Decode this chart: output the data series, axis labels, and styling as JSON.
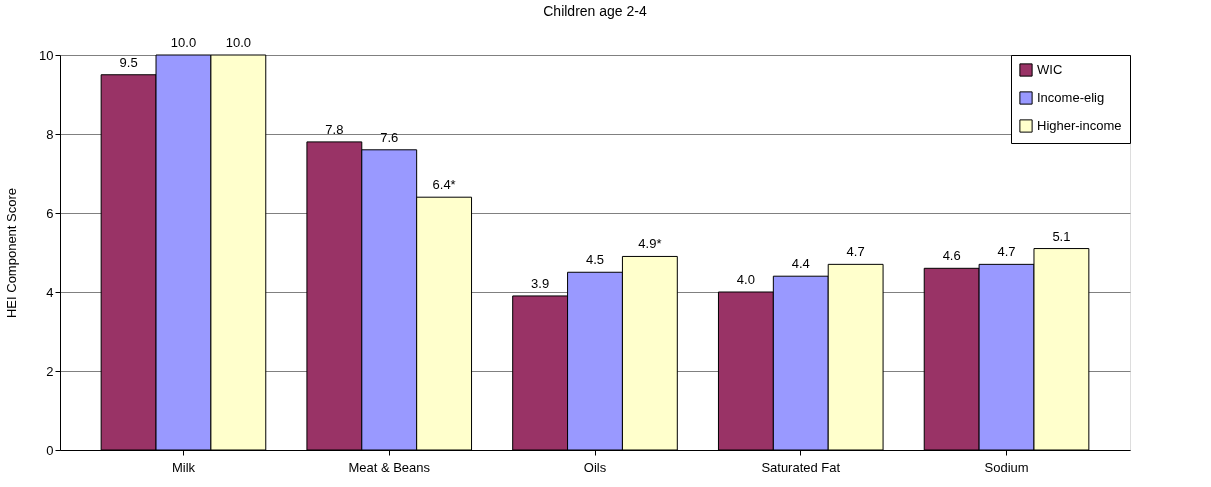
{
  "chart_data": {
    "type": "bar",
    "title": "Children age 2-4",
    "ylabel": "HEI Component Score",
    "categories": [
      "Milk",
      "Meat & Beans",
      "Oils",
      "Saturated Fat",
      "Sodium"
    ],
    "series": [
      {
        "name": "WIC",
        "color": "#993366",
        "values": [
          9.5,
          7.8,
          3.9,
          4.0,
          4.6
        ],
        "value_labels": [
          "9.5",
          "7.8",
          "3.9",
          "4.0",
          "4.6"
        ]
      },
      {
        "name": "Income-elig",
        "color": "#9999ff",
        "values": [
          10.0,
          7.6,
          4.5,
          4.4,
          4.7
        ],
        "value_labels": [
          "10.0",
          "7.6",
          "4.5",
          "4.4",
          "4.7"
        ]
      },
      {
        "name": "Higher-income",
        "color": "#ffffcc",
        "values": [
          10.0,
          6.4,
          4.9,
          4.7,
          5.1
        ],
        "value_labels": [
          "10.0",
          "6.4*",
          "4.9*",
          "4.7",
          "5.1"
        ]
      }
    ],
    "ylim": [
      0,
      10
    ],
    "yticks": [
      0,
      2,
      4,
      6,
      8,
      10
    ],
    "grid": "y",
    "legend": "top right"
  }
}
